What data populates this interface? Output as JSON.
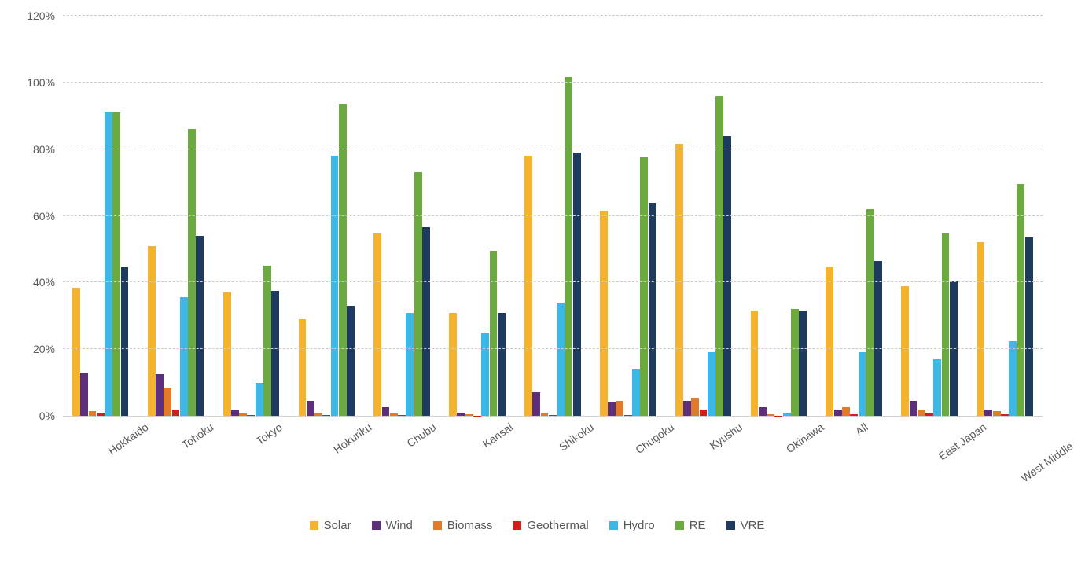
{
  "chart": {
    "type": "bar",
    "background_color": "#ffffff",
    "grid_color": "#cccccc",
    "axis_color": "#d0d0d0",
    "label_color": "#595959",
    "label_fontsize": 14,
    "legend_fontsize": 15,
    "ylim": [
      0,
      120
    ],
    "ytick_step": 20,
    "yticks": [
      {
        "value": 0,
        "label": "0%"
      },
      {
        "value": 20,
        "label": "20%"
      },
      {
        "value": 40,
        "label": "40%"
      },
      {
        "value": 60,
        "label": "60%"
      },
      {
        "value": 80,
        "label": "80%"
      },
      {
        "value": 100,
        "label": "100%"
      },
      {
        "value": 120,
        "label": "120%"
      }
    ],
    "categories": [
      "Hokkaido",
      "Tohoku",
      "Tokyo",
      "Hokuriku",
      "Chubu",
      "Kansai",
      "Shikoku",
      "Chugoku",
      "Kyushu",
      "Okinawa",
      "All",
      "East Japan",
      "West Middle Japan"
    ],
    "series": [
      {
        "name": "Solar",
        "color": "#f4b32e"
      },
      {
        "name": "Wind",
        "color": "#5b2f7a"
      },
      {
        "name": "Biomass",
        "color": "#e07b2e"
      },
      {
        "name": "Geothermal",
        "color": "#d31d1d"
      },
      {
        "name": "Hydro",
        "color": "#3cb7e6"
      },
      {
        "name": "RE",
        "color": "#6aaa3e"
      },
      {
        "name": "VRE",
        "color": "#1e3a5f"
      }
    ],
    "data": {
      "Hokkaido": {
        "Solar": 38.5,
        "Wind": 13.0,
        "Biomass": 1.5,
        "Geothermal": 1.0,
        "Hydro": 91.0,
        "RE": 91.0,
        "VRE": 44.5
      },
      "Tohoku": {
        "Solar": 51.0,
        "Wind": 12.5,
        "Biomass": 8.5,
        "Geothermal": 2.0,
        "Hydro": 35.5,
        "RE": 86.0,
        "VRE": 54.0
      },
      "Tokyo": {
        "Solar": 37.0,
        "Wind": 2.0,
        "Biomass": 0.8,
        "Geothermal": 0.2,
        "Hydro": 10.0,
        "RE": 45.0,
        "VRE": 37.5
      },
      "Hokuriku": {
        "Solar": 29.0,
        "Wind": 4.5,
        "Biomass": 1.0,
        "Geothermal": 0.2,
        "Hydro": 78.0,
        "RE": 93.5,
        "VRE": 33.0
      },
      "Chubu": {
        "Solar": 55.0,
        "Wind": 2.5,
        "Biomass": 0.8,
        "Geothermal": 0.2,
        "Hydro": 31.0,
        "RE": 73.0,
        "VRE": 56.5
      },
      "Kansai": {
        "Solar": 31.0,
        "Wind": 1.0,
        "Biomass": 0.5,
        "Geothermal": 0.1,
        "Hydro": 25.0,
        "RE": 49.5,
        "VRE": 31.0
      },
      "Shikoku": {
        "Solar": 78.0,
        "Wind": 7.0,
        "Biomass": 1.0,
        "Geothermal": 0.2,
        "Hydro": 34.0,
        "RE": 101.5,
        "VRE": 79.0
      },
      "Chugoku": {
        "Solar": 61.5,
        "Wind": 4.0,
        "Biomass": 4.5,
        "Geothermal": 0.2,
        "Hydro": 14.0,
        "RE": 77.5,
        "VRE": 64.0
      },
      "Kyushu": {
        "Solar": 81.5,
        "Wind": 4.5,
        "Biomass": 5.5,
        "Geothermal": 2.0,
        "Hydro": 19.0,
        "RE": 96.0,
        "VRE": 84.0
      },
      "Okinawa": {
        "Solar": 31.5,
        "Wind": 2.5,
        "Biomass": 0.5,
        "Geothermal": 0.1,
        "Hydro": 1.0,
        "RE": 32.0,
        "VRE": 31.5
      },
      "All": {
        "Solar": 44.5,
        "Wind": 2.0,
        "Biomass": 2.5,
        "Geothermal": 0.5,
        "Hydro": 19.0,
        "RE": 62.0,
        "VRE": 46.5
      },
      "East Japan": {
        "Solar": 39.0,
        "Wind": 4.5,
        "Biomass": 2.0,
        "Geothermal": 1.0,
        "Hydro": 17.0,
        "RE": 55.0,
        "VRE": 40.5
      },
      "West Middle Japan": {
        "Solar": 52.0,
        "Wind": 2.0,
        "Biomass": 1.5,
        "Geothermal": 0.5,
        "Hydro": 22.5,
        "RE": 69.5,
        "VRE": 53.5
      }
    },
    "x_label_rotation": -35,
    "bar_gap_ratio": 0.0,
    "group_gap_ratio": 0.25
  }
}
